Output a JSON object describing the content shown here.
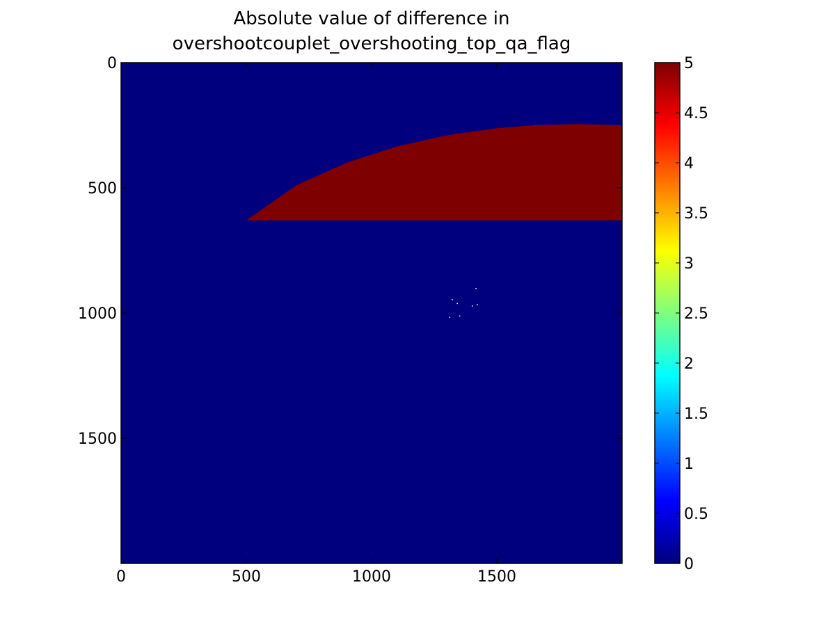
{
  "chart_data": {
    "type": "heatmap",
    "title_lines": [
      "Absolute value of difference in",
      "overshootcouplet_overshooting_top_qa_flag"
    ],
    "xlabel": "",
    "ylabel": "",
    "xlim": [
      0,
      2000
    ],
    "ylim": [
      2000,
      0
    ],
    "y_axis_inverted": true,
    "x_ticks": [
      0,
      500,
      1000,
      1500
    ],
    "x_tick_labels": [
      "0",
      "500",
      "1000",
      "1500"
    ],
    "y_ticks": [
      0,
      500,
      1000,
      1500
    ],
    "y_tick_labels": [
      "0",
      "500",
      "1000",
      "1500"
    ],
    "background_value": 0,
    "colormap": "jet",
    "colorbar": {
      "range": [
        0,
        5
      ],
      "ticks": [
        0,
        0.5,
        1,
        1.5,
        2,
        2.5,
        3,
        3.5,
        4,
        4.5,
        5
      ],
      "tick_labels": [
        "0",
        "0.5",
        "1",
        "1.5",
        "2",
        "2.5",
        "3",
        "3.5",
        "4",
        "4.5",
        "5"
      ],
      "colors": [
        "#00007f",
        "#0000ff",
        "#007fff",
        "#00ffff",
        "#7fff7f",
        "#ffff00",
        "#ff7f00",
        "#ff0000",
        "#7f0000"
      ]
    },
    "regions": [
      {
        "value": 5,
        "shape": "arc-bounded region",
        "boundary_points": [
          [
            500,
            630
          ],
          [
            700,
            490
          ],
          [
            900,
            400
          ],
          [
            1100,
            335
          ],
          [
            1300,
            290
          ],
          [
            1500,
            262
          ],
          [
            1650,
            250
          ],
          [
            1820,
            245
          ],
          [
            2000,
            250
          ],
          [
            2000,
            630
          ]
        ]
      }
    ],
    "speckles": [
      {
        "x": 1310,
        "y": 1015,
        "value": 5
      },
      {
        "x": 1320,
        "y": 945,
        "value": 5
      },
      {
        "x": 1340,
        "y": 960,
        "value": 5
      },
      {
        "x": 1350,
        "y": 1010,
        "value": 5
      },
      {
        "x": 1400,
        "y": 970,
        "value": 5
      },
      {
        "x": 1415,
        "y": 900,
        "value": 5
      },
      {
        "x": 1420,
        "y": 965,
        "value": 5
      }
    ],
    "colors": {
      "background": "#00007f",
      "region": "#7f0000",
      "speckle": "#ffffff"
    }
  }
}
